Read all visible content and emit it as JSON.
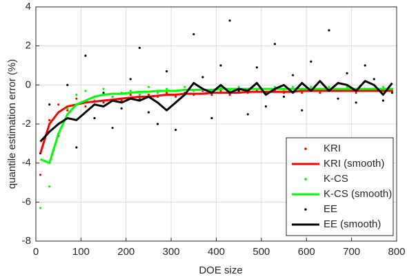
{
  "chart_data": {
    "type": "scatter",
    "x_label": "DOE size",
    "y_label": "quantile estimation error (%)",
    "x": [
      10,
      30,
      50,
      70,
      90,
      110,
      130,
      150,
      170,
      190,
      210,
      230,
      250,
      270,
      290,
      310,
      330,
      350,
      370,
      390,
      410,
      430,
      450,
      470,
      490,
      510,
      530,
      550,
      570,
      590,
      610,
      630,
      650,
      670,
      690,
      710,
      730,
      750,
      770,
      790
    ],
    "series": [
      {
        "name": "KRI",
        "color": "#ff0000",
        "mode": "markers",
        "values": [
          -4.6,
          -1.8,
          -1.0,
          -1.3,
          -0.7,
          -1.1,
          -0.6,
          -0.9,
          -0.6,
          -0.8,
          -0.5,
          -0.7,
          -0.5,
          -0.6,
          -0.4,
          -0.6,
          -0.4,
          -0.5,
          -0.3,
          -0.5,
          -0.3,
          -0.5,
          -0.3,
          -0.4,
          -0.3,
          -0.4,
          -0.3,
          -0.4,
          -0.2,
          -0.4,
          -0.2,
          -0.4,
          -0.3,
          -0.3,
          -0.2,
          -0.4,
          -0.2,
          -0.3,
          -0.3,
          -0.3
        ]
      },
      {
        "name": "KRI (smooth)",
        "color": "#ff0000",
        "mode": "line",
        "values": [
          -3.5,
          -2.0,
          -1.4,
          -1.1,
          -1.0,
          -0.9,
          -0.85,
          -0.8,
          -0.75,
          -0.7,
          -0.65,
          -0.6,
          -0.6,
          -0.55,
          -0.5,
          -0.5,
          -0.45,
          -0.45,
          -0.45,
          -0.4,
          -0.4,
          -0.4,
          -0.4,
          -0.35,
          -0.35,
          -0.35,
          -0.35,
          -0.35,
          -0.35,
          -0.3,
          -0.3,
          -0.3,
          -0.3,
          -0.3,
          -0.3,
          -0.3,
          -0.3,
          -0.3,
          -0.3,
          -0.3
        ]
      },
      {
        "name": "K-CS",
        "color": "#00ff00",
        "mode": "markers",
        "values": [
          -6.3,
          -5.2,
          -2.0,
          -1.2,
          -0.5,
          -0.3,
          -0.8,
          -0.2,
          -0.6,
          -0.4,
          -0.3,
          -0.5,
          -0.1,
          -0.4,
          -0.2,
          -0.5,
          -0.1,
          -0.3,
          -0.2,
          -0.3,
          -0.1,
          -0.3,
          -0.1,
          -0.3,
          -0.2,
          -0.2,
          -0.1,
          -0.3,
          -0.1,
          -0.2,
          -0.1,
          -0.3,
          -0.1,
          -0.2,
          -0.1,
          -0.3,
          -0.2,
          -0.2,
          -0.1,
          -0.2
        ]
      },
      {
        "name": "K-CS (smooth)",
        "color": "#00ff00",
        "mode": "line",
        "values": [
          -3.8,
          -4.0,
          -2.5,
          -1.5,
          -1.0,
          -0.8,
          -0.6,
          -0.5,
          -0.45,
          -0.45,
          -0.4,
          -0.35,
          -0.35,
          -0.3,
          -0.3,
          -0.3,
          -0.25,
          -0.25,
          -0.25,
          -0.25,
          -0.2,
          -0.2,
          -0.2,
          -0.2,
          -0.2,
          -0.2,
          -0.2,
          -0.2,
          -0.2,
          -0.2,
          -0.2,
          -0.2,
          -0.2,
          -0.2,
          -0.2,
          -0.2,
          -0.2,
          -0.2,
          -0.2,
          -0.2
        ]
      },
      {
        "name": "EE",
        "color": "#000000",
        "mode": "markers",
        "values": [
          -3.5,
          -1.0,
          -2.6,
          0.0,
          -3.2,
          1.5,
          -1.7,
          -0.4,
          -2.2,
          -1.2,
          0.3,
          1.9,
          -1.4,
          -2.0,
          0.7,
          -2.3,
          -0.5,
          2.6,
          0.4,
          -1.7,
          1.0,
          3.3,
          -0.3,
          -1.5,
          0.9,
          -1.1,
          2.1,
          -0.6,
          0.5,
          -1.3,
          1.2,
          -0.2,
          2.8,
          -0.7,
          0.6,
          -0.9,
          1.0,
          0.3,
          -0.8,
          -0.4
        ]
      },
      {
        "name": "EE (smooth)",
        "color": "#000000",
        "mode": "line",
        "values": [
          -2.9,
          -2.4,
          -2.0,
          -1.7,
          -1.8,
          -1.4,
          -1.0,
          -1.1,
          -0.8,
          -0.9,
          -0.7,
          -0.8,
          -0.6,
          -0.9,
          -1.3,
          -0.9,
          -0.5,
          0.1,
          -0.2,
          -0.4,
          0.0,
          -0.4,
          -0.2,
          -0.3,
          0.1,
          -0.5,
          -0.2,
          0.0,
          -0.4,
          0.1,
          -0.3,
          0.2,
          -0.3,
          0.1,
          0.0,
          -0.3,
          0.2,
          0.0,
          -0.5,
          0.1
        ]
      }
    ],
    "xlim": [
      0,
      800
    ],
    "xticks": [
      0,
      100,
      200,
      300,
      400,
      500,
      600,
      700,
      800
    ],
    "ylim": [
      -8,
      4
    ],
    "yticks": [
      -8,
      -6,
      -4,
      -2,
      0,
      2,
      4
    ],
    "grid": true,
    "legend": "lower right"
  }
}
